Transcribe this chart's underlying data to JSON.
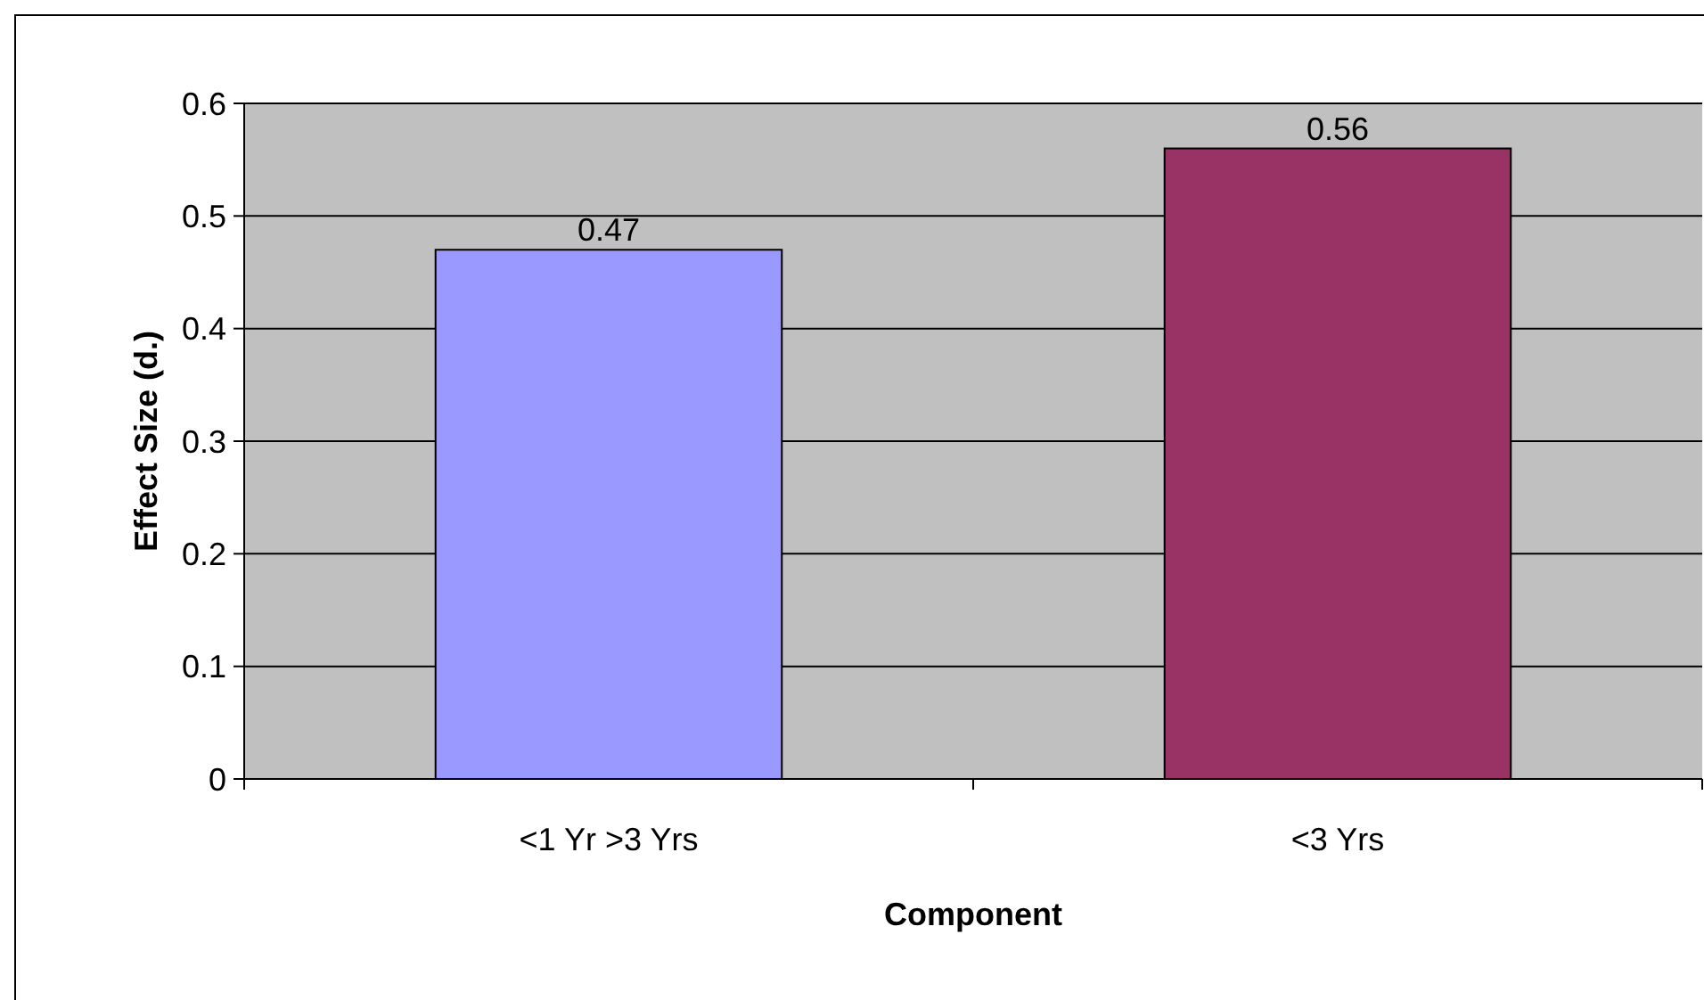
{
  "chart_data": {
    "type": "bar",
    "xlabel": "Component",
    "ylabel": "Effect Size (d.)",
    "categories": [
      "<1 Yr >3 Yrs",
      "<3 Yrs"
    ],
    "values": [
      0.47,
      0.56
    ],
    "colors": [
      "#9999ff",
      "#993366"
    ],
    "ylim": [
      0,
      0.6
    ],
    "yticks": [
      0,
      0.1,
      0.2,
      0.3,
      0.4,
      0.5,
      0.6
    ],
    "grid": "y",
    "data_labels": true
  }
}
